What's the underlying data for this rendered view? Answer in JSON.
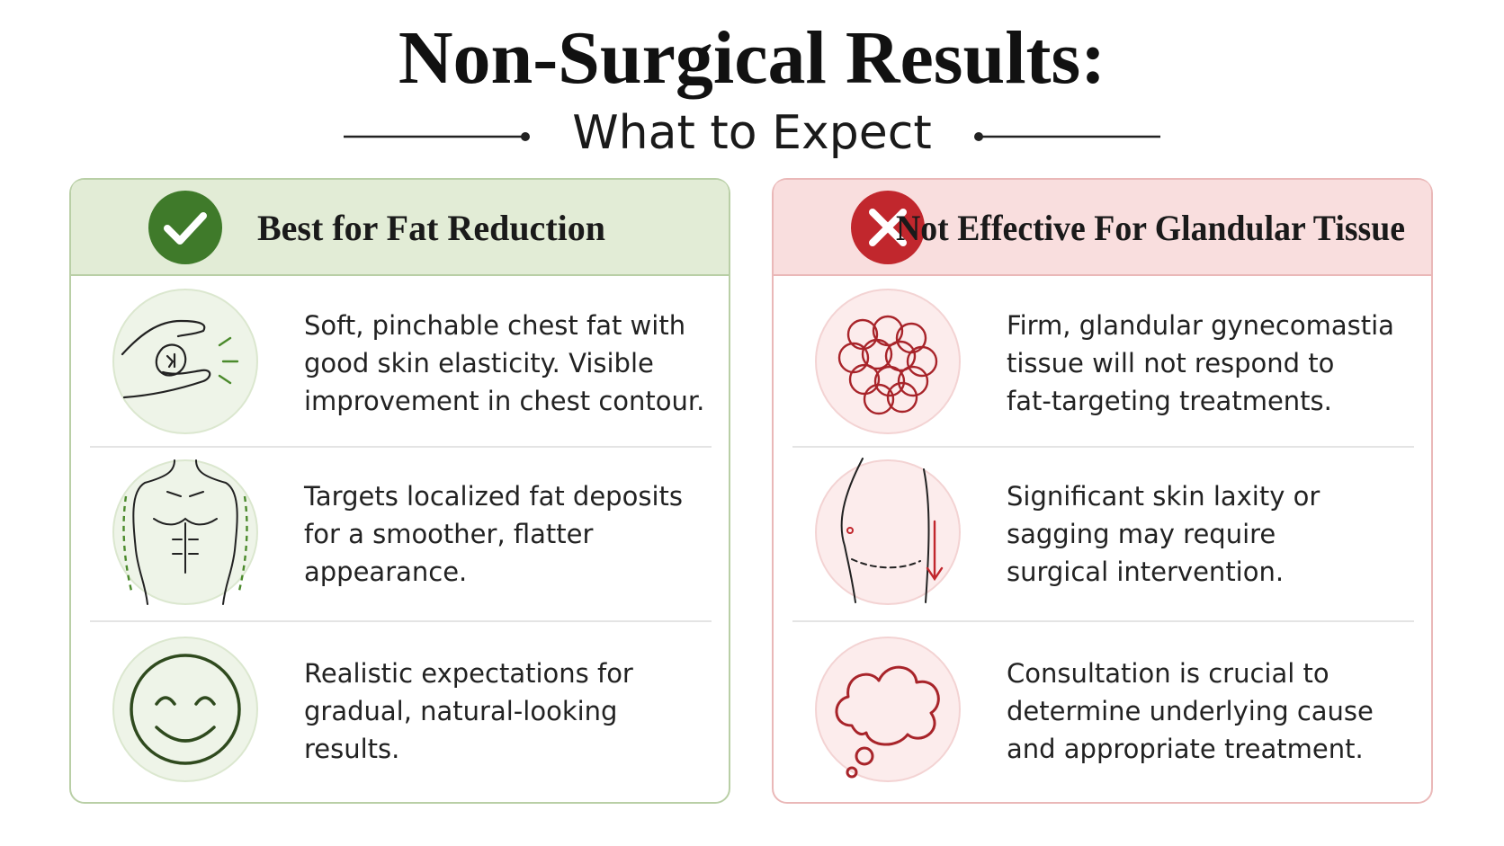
{
  "header": {
    "title": "Non-Surgical Results:",
    "subtitle": "What to Expect"
  },
  "panels": [
    {
      "heading": "Best for Fat Reduction",
      "items": [
        {
          "lines": [
            "Soft, pinchable chest fat with",
            "good skin elasticity. Visible",
            "improvement in chest contour."
          ]
        },
        {
          "lines": [
            "Targets localized fat deposits",
            "for a smoother, flatter",
            "appearance."
          ]
        },
        {
          "lines": [
            "Realistic expectations for",
            "gradual, natural-looking",
            "results."
          ]
        }
      ]
    },
    {
      "heading": "Not Effective For Glandular Tissue",
      "items": [
        {
          "lines": [
            "Firm, glandular gynecomastia",
            "tissue will not respond to",
            "fat-targeting treatments."
          ]
        },
        {
          "lines": [
            "Significant skin laxity or",
            "sagging may require",
            "surgical intervention."
          ]
        },
        {
          "lines": [
            "Consultation is crucial to",
            "determine underlying cause",
            "and appropriate treatment."
          ]
        }
      ]
    }
  ]
}
